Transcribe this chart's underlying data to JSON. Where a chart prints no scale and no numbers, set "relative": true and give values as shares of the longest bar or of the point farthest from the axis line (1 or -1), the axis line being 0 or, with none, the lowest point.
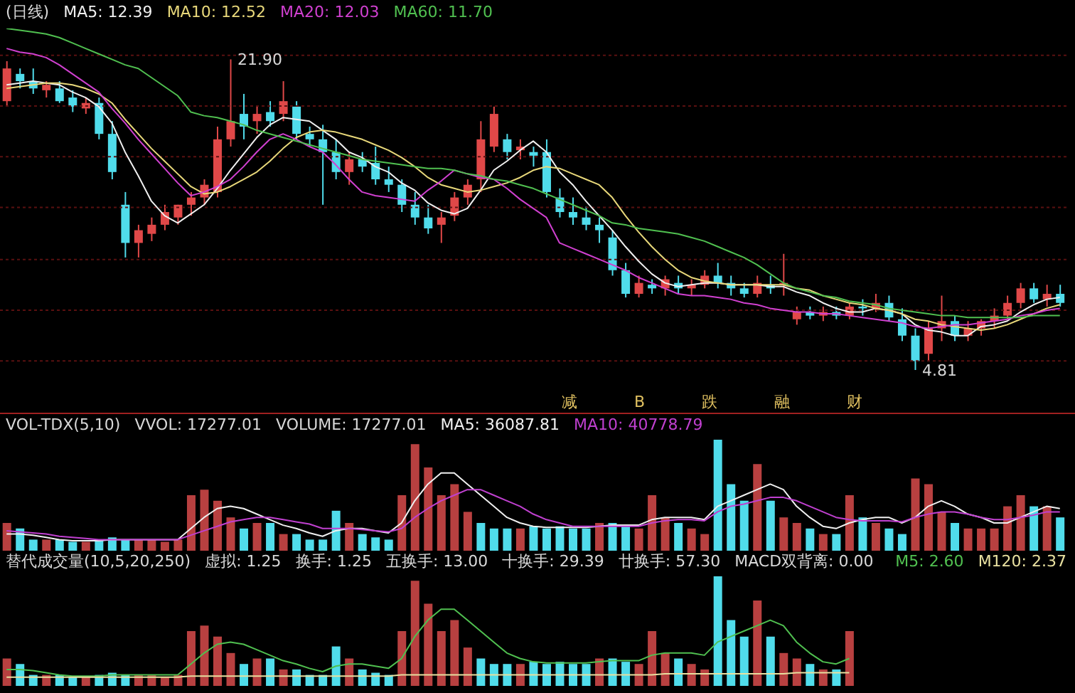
{
  "chart_data": [
    {
      "type": "candlestick",
      "title": "(日线)",
      "legend": "top left",
      "tick_labels": false,
      "grid": "y",
      "yticks": [
        {
          "value": 22.12,
          "label": null
        },
        {
          "value": 19.33,
          "label": null
        },
        {
          "value": 16.54,
          "label": null
        },
        {
          "value": 13.75,
          "label": null
        },
        {
          "value": 10.89,
          "label": null
        },
        {
          "value": 8.1,
          "label": null
        },
        {
          "value": 5.31,
          "label": null
        }
      ],
      "categories": [
        null,
        null,
        null,
        null,
        null,
        null,
        null,
        null,
        null,
        null,
        null,
        null,
        null,
        null,
        null,
        null,
        null,
        null,
        null,
        null,
        null,
        null,
        null,
        null,
        null,
        null,
        null,
        null,
        null,
        null,
        null,
        null,
        null,
        null,
        null,
        null,
        null,
        null,
        null,
        null,
        null,
        null,
        null,
        null,
        null,
        null,
        null,
        null,
        null,
        null,
        null,
        null,
        null,
        null,
        null,
        null,
        null,
        null,
        null,
        null,
        null,
        null,
        null,
        null,
        null,
        null,
        null,
        null,
        null,
        null,
        null,
        null,
        null,
        null,
        null,
        null,
        null,
        null,
        null,
        null,
        null
      ],
      "ohlc": [
        [
          19.6,
          21.8,
          19.3,
          21.4
        ],
        [
          21.1,
          21.4,
          20.3,
          20.7
        ],
        [
          20.7,
          21.4,
          20.0,
          20.3
        ],
        [
          20.2,
          20.7,
          19.8,
          20.5
        ],
        [
          20.3,
          20.7,
          19.5,
          19.6
        ],
        [
          19.8,
          20.2,
          19.0,
          19.3
        ],
        [
          19.2,
          19.8,
          18.9,
          19.5
        ],
        [
          19.5,
          19.8,
          17.5,
          17.8
        ],
        [
          17.8,
          18.5,
          15.3,
          15.7
        ],
        [
          13.9,
          14.6,
          11.0,
          11.8
        ],
        [
          11.8,
          12.8,
          11.0,
          12.5
        ],
        [
          12.3,
          13.2,
          11.9,
          12.8
        ],
        [
          12.8,
          13.9,
          12.5,
          13.5
        ],
        [
          13.2,
          13.9,
          12.8,
          13.9
        ],
        [
          13.9,
          14.6,
          13.3,
          14.3
        ],
        [
          14.3,
          15.3,
          13.9,
          15.0
        ],
        [
          14.6,
          18.2,
          14.3,
          17.5
        ],
        [
          17.5,
          21.9,
          17.1,
          18.5
        ],
        [
          18.9,
          20.0,
          17.5,
          18.2
        ],
        [
          18.5,
          19.3,
          17.8,
          18.9
        ],
        [
          19.0,
          19.6,
          18.2,
          18.5
        ],
        [
          18.9,
          20.7,
          18.5,
          19.6
        ],
        [
          19.3,
          19.6,
          17.5,
          17.8
        ],
        [
          17.8,
          18.2,
          17.1,
          17.5
        ],
        [
          17.5,
          18.3,
          13.9,
          16.8
        ],
        [
          16.8,
          17.5,
          15.3,
          15.7
        ],
        [
          15.7,
          16.8,
          15.0,
          16.4
        ],
        [
          16.4,
          16.8,
          15.7,
          16.0
        ],
        [
          16.2,
          17.1,
          15.0,
          15.3
        ],
        [
          15.3,
          16.0,
          14.6,
          15.0
        ],
        [
          15.0,
          15.3,
          13.5,
          13.9
        ],
        [
          13.9,
          14.6,
          12.8,
          13.2
        ],
        [
          13.2,
          13.9,
          12.3,
          12.6
        ],
        [
          12.8,
          13.5,
          11.8,
          13.2
        ],
        [
          13.3,
          14.6,
          13.0,
          14.3
        ],
        [
          14.3,
          15.3,
          13.9,
          15.0
        ],
        [
          15.3,
          18.5,
          14.6,
          17.5
        ],
        [
          17.1,
          19.3,
          16.8,
          18.9
        ],
        [
          17.5,
          17.8,
          16.4,
          16.8
        ],
        [
          16.9,
          17.5,
          16.4,
          17.1
        ],
        [
          16.8,
          17.1,
          16.0,
          16.6
        ],
        [
          16.8,
          17.5,
          14.3,
          14.6
        ],
        [
          14.3,
          14.8,
          13.2,
          13.5
        ],
        [
          13.5,
          14.3,
          12.8,
          13.2
        ],
        [
          13.2,
          13.8,
          12.5,
          12.8
        ],
        [
          12.8,
          13.2,
          11.8,
          12.5
        ],
        [
          12.1,
          12.5,
          10.0,
          10.3
        ],
        [
          10.3,
          10.7,
          8.8,
          9.0
        ],
        [
          9.0,
          10.0,
          8.8,
          9.6
        ],
        [
          9.5,
          9.8,
          9.0,
          9.3
        ],
        [
          9.3,
          10.0,
          8.9,
          9.8
        ],
        [
          9.6,
          10.0,
          9.0,
          9.3
        ],
        [
          9.3,
          9.8,
          8.9,
          9.5
        ],
        [
          9.5,
          10.3,
          9.3,
          10.0
        ],
        [
          10.0,
          10.7,
          9.3,
          9.6
        ],
        [
          9.6,
          10.0,
          8.9,
          9.3
        ],
        [
          9.3,
          9.6,
          8.8,
          9.0
        ],
        [
          9.0,
          10.0,
          8.8,
          9.6
        ],
        [
          9.5,
          10.0,
          9.0,
          9.3
        ],
        [
          9.5,
          11.2,
          8.9,
          9.6
        ],
        [
          7.6,
          8.3,
          7.3,
          8.0
        ],
        [
          8.0,
          8.3,
          7.6,
          7.8
        ],
        [
          7.8,
          8.3,
          7.5,
          8.0
        ],
        [
          8.0,
          8.3,
          7.6,
          7.8
        ],
        [
          7.8,
          8.5,
          7.6,
          8.3
        ],
        [
          8.3,
          8.7,
          7.8,
          8.2
        ],
        [
          8.2,
          9.0,
          8.0,
          8.5
        ],
        [
          8.5,
          8.9,
          7.5,
          7.7
        ],
        [
          7.6,
          8.2,
          6.4,
          6.7
        ],
        [
          6.7,
          7.1,
          4.81,
          5.3
        ],
        [
          5.7,
          7.5,
          5.3,
          7.1
        ],
        [
          7.1,
          8.9,
          6.4,
          7.5
        ],
        [
          7.5,
          7.8,
          6.4,
          6.7
        ],
        [
          6.7,
          7.5,
          6.4,
          7.1
        ],
        [
          7.1,
          7.6,
          6.7,
          7.5
        ],
        [
          7.5,
          8.2,
          7.1,
          7.8
        ],
        [
          7.8,
          8.9,
          7.6,
          8.5
        ],
        [
          8.5,
          9.6,
          8.2,
          9.3
        ],
        [
          9.3,
          9.6,
          8.5,
          8.7
        ],
        [
          8.7,
          9.5,
          8.3,
          9.0
        ],
        [
          9.0,
          9.5,
          8.3,
          8.5
        ]
      ],
      "colors": [
        "#e04848",
        "#50dceb",
        "#50dceb",
        "#e04848",
        "#50dceb",
        "#50dceb",
        "#e04848",
        "#50dceb",
        "#50dceb",
        "#50dceb",
        "#e04848",
        "#e04848",
        "#e04848",
        "#e04848",
        "#e04848",
        "#e04848",
        "#e04848",
        "#e04848",
        "#50dceb",
        "#e04848",
        "#50dceb",
        "#e04848",
        "#50dceb",
        "#50dceb",
        "#50dceb",
        "#50dceb",
        "#e04848",
        "#50dceb",
        "#50dceb",
        "#50dceb",
        "#50dceb",
        "#50dceb",
        "#50dceb",
        "#e04848",
        "#e04848",
        "#e04848",
        "#e04848",
        "#e04848",
        "#50dceb",
        "#e04848",
        "#50dceb",
        "#50dceb",
        "#50dceb",
        "#50dceb",
        "#50dceb",
        "#50dceb",
        "#50dceb",
        "#50dceb",
        "#e04848",
        "#50dceb",
        "#e04848",
        "#50dceb",
        "#e04848",
        "#e04848",
        "#50dceb",
        "#50dceb",
        "#50dceb",
        "#e04848",
        "#50dceb",
        "#e04848",
        "#e04848",
        "#50dceb",
        "#e04848",
        "#50dceb",
        "#e04848",
        "#50dceb",
        "#e04848",
        "#50dceb",
        "#50dceb",
        "#50dceb",
        "#e04848",
        "#e04848",
        "#50dceb",
        "#e04848",
        "#e04848",
        "#e04848",
        "#e04848",
        "#e04848",
        "#50dceb",
        "#e04848",
        "#50dceb"
      ],
      "series": [
        {
          "name": "MA5: 12.39",
          "type": "line",
          "color": "#f0f0f0",
          "values": [
            20.5,
            20.6,
            20.7,
            20.6,
            20.5,
            20.1,
            19.8,
            19.3,
            18.4,
            16.8,
            15.5,
            14.1,
            13.3,
            12.9,
            13.4,
            13.9,
            14.8,
            15.8,
            16.7,
            17.6,
            18.3,
            18.7,
            18.6,
            18.5,
            18.0,
            17.5,
            16.8,
            16.5,
            16.0,
            15.7,
            15.1,
            14.7,
            14.0,
            13.6,
            13.4,
            13.7,
            14.7,
            15.8,
            16.3,
            16.9,
            17.4,
            16.8,
            15.7,
            15.0,
            14.1,
            13.3,
            12.5,
            11.6,
            10.8,
            10.1,
            9.6,
            9.4,
            9.5,
            9.6,
            9.6,
            9.5,
            9.5,
            9.5,
            9.4,
            9.4,
            9.1,
            8.9,
            8.5,
            8.2,
            8.0,
            8.0,
            8.2,
            8.1,
            7.9,
            7.3,
            7.0,
            6.9,
            6.7,
            6.7,
            7.2,
            7.3,
            7.5,
            8.0,
            8.4,
            8.7,
            8.8
          ]
        },
        {
          "name": "MA10: 12.52",
          "type": "line",
          "color": "#e8d87a",
          "values": [
            20.3,
            20.4,
            20.5,
            20.6,
            20.6,
            20.5,
            20.3,
            20.0,
            19.5,
            18.6,
            17.8,
            17.0,
            16.3,
            15.6,
            14.9,
            14.5,
            14.6,
            14.9,
            15.3,
            15.7,
            16.3,
            17.0,
            17.6,
            17.9,
            18.0,
            17.9,
            17.7,
            17.5,
            17.2,
            16.9,
            16.5,
            16.0,
            15.4,
            15.0,
            14.8,
            14.6,
            14.7,
            14.9,
            15.1,
            15.4,
            15.8,
            16.0,
            15.9,
            15.6,
            15.3,
            15.0,
            14.3,
            13.3,
            12.4,
            11.6,
            10.9,
            10.3,
            9.9,
            9.7,
            9.6,
            9.5,
            9.5,
            9.5,
            9.5,
            9.5,
            9.3,
            9.2,
            8.9,
            8.7,
            8.5,
            8.4,
            8.2,
            8.1,
            7.9,
            7.6,
            7.5,
            7.3,
            7.2,
            7.1,
            7.0,
            7.1,
            7.3,
            7.6,
            7.9,
            8.2,
            8.4
          ]
        },
        {
          "name": "MA20: 12.03",
          "type": "line",
          "color": "#d040d0",
          "values": [
            22.5,
            22.3,
            22.2,
            22.0,
            21.6,
            21.1,
            20.6,
            20.1,
            19.2,
            18.4,
            17.5,
            16.7,
            15.9,
            15.1,
            14.4,
            14.6,
            14.9,
            15.3,
            16.0,
            16.8,
            17.5,
            17.8,
            17.5,
            17.1,
            16.8,
            16.1,
            15.3,
            14.6,
            14.4,
            14.3,
            14.2,
            14.1,
            14.7,
            15.2,
            15.8,
            15.6,
            15.4,
            15.3,
            14.8,
            14.2,
            13.7,
            13.2,
            11.8,
            11.5,
            11.2,
            10.9,
            10.6,
            10.3,
            9.9,
            9.6,
            9.3,
            9.0,
            8.9,
            8.9,
            8.8,
            8.7,
            8.5,
            8.4,
            8.2,
            8.1,
            8.0,
            8.0,
            7.9,
            7.9,
            7.8,
            7.7,
            7.6,
            7.5,
            7.4,
            7.2,
            7.1,
            7.2,
            7.3,
            7.3,
            7.4,
            7.5,
            7.6,
            7.8,
            7.9,
            8.1,
            8.2
          ]
        },
        {
          "name": "MA60: 11.70",
          "type": "line",
          "color": "#50c050",
          "values": [
            23.6,
            23.5,
            23.4,
            23.3,
            23.1,
            22.8,
            22.5,
            22.2,
            21.9,
            21.6,
            21.4,
            20.9,
            20.4,
            19.9,
            19.0,
            18.8,
            18.7,
            18.5,
            18.3,
            18.0,
            17.8,
            17.6,
            17.4,
            17.2,
            17.0,
            16.8,
            16.6,
            16.4,
            16.3,
            16.2,
            16.1,
            16.0,
            15.9,
            15.9,
            15.8,
            15.6,
            15.5,
            15.3,
            15.2,
            15.0,
            14.8,
            14.5,
            14.2,
            13.9,
            13.6,
            13.3,
            12.9,
            12.8,
            12.6,
            12.5,
            12.4,
            12.3,
            12.1,
            11.9,
            11.6,
            11.3,
            11.0,
            10.6,
            10.1,
            9.6,
            9.3,
            9.1,
            8.9,
            8.8,
            8.6,
            8.5,
            8.4,
            8.2,
            8.1,
            8.0,
            7.9,
            7.8,
            7.8,
            7.7,
            7.7,
            7.7,
            7.7,
            7.7,
            7.8,
            7.8,
            7.8
          ]
        }
      ],
      "annotations": [
        "21.90",
        "4.81",
        "减",
        "B",
        "跌",
        "融",
        "财"
      ]
    },
    {
      "type": "bar",
      "title": "VOL-TDX(5,10)",
      "legend": "top left",
      "tick_labels": false,
      "relative": true,
      "categories": [
        null,
        null,
        null,
        null,
        null,
        null,
        null,
        null,
        null,
        null,
        null,
        null,
        null,
        null,
        null,
        null,
        null,
        null,
        null,
        null,
        null,
        null,
        null,
        null,
        null,
        null,
        null,
        null,
        null,
        null,
        null,
        null,
        null,
        null,
        null,
        null,
        null,
        null,
        null,
        null,
        null,
        null,
        null,
        null,
        null,
        null,
        null,
        null,
        null,
        null,
        null,
        null,
        null,
        null,
        null,
        null,
        null,
        null,
        null,
        null,
        null,
        null,
        null,
        null,
        null,
        null,
        null,
        null,
        null,
        null,
        null,
        null,
        null,
        null,
        null,
        null,
        null,
        null,
        null,
        null,
        null
      ],
      "annotations": [
        "VVOL: 17277.01",
        "VOLUME: 17277.01"
      ],
      "series": [
        {
          "type": "bar",
          "colors": [
            "#b84040",
            "#50dceb",
            "#50dceb",
            "#b84040",
            "#50dceb",
            "#50dceb",
            "#b84040",
            "#50dceb",
            "#50dceb",
            "#50dceb",
            "#b84040",
            "#b84040",
            "#b84040",
            "#b84040",
            "#b84040",
            "#b84040",
            "#b84040",
            "#b84040",
            "#50dceb",
            "#b84040",
            "#50dceb",
            "#b84040",
            "#50dceb",
            "#50dceb",
            "#50dceb",
            "#50dceb",
            "#b84040",
            "#50dceb",
            "#50dceb",
            "#50dceb",
            "#b84040",
            "#b84040",
            "#b84040",
            "#b84040",
            "#b84040",
            "#b84040",
            "#50dceb",
            "#50dceb",
            "#50dceb",
            "#b84040",
            "#50dceb",
            "#50dceb",
            "#50dceb",
            "#50dceb",
            "#50dceb",
            "#b84040",
            "#50dceb",
            "#50dceb",
            "#b84040",
            "#b84040",
            "#b84040",
            "#50dceb",
            "#b84040",
            "#b84040",
            "#50dceb",
            "#50dceb",
            "#50dceb",
            "#b84040",
            "#50dceb",
            "#b84040",
            "#b84040",
            "#50dceb",
            "#b84040",
            "#50dceb",
            "#b84040",
            "#50dceb",
            "#b84040",
            "#50dceb",
            "#50dceb",
            "#b84040",
            "#b84040",
            "#b84040",
            "#50dceb",
            "#b84040",
            "#b84040",
            "#b84040",
            "#b84040",
            "#b84040",
            "#50dceb",
            "#b84040",
            "#50dceb"
          ],
          "values": [
            0.25,
            0.2,
            0.1,
            0.1,
            0.1,
            0.08,
            0.08,
            0.1,
            0.12,
            0.1,
            0.1,
            0.1,
            0.08,
            0.1,
            0.5,
            0.55,
            0.45,
            0.3,
            0.2,
            0.25,
            0.25,
            0.15,
            0.15,
            0.1,
            0.1,
            0.36,
            0.25,
            0.15,
            0.12,
            0.1,
            0.5,
            0.96,
            0.75,
            0.5,
            0.6,
            0.35,
            0.25,
            0.2,
            0.2,
            0.2,
            0.22,
            0.2,
            0.22,
            0.2,
            0.2,
            0.25,
            0.25,
            0.22,
            0.2,
            0.5,
            0.3,
            0.25,
            0.2,
            0.15,
            1,
            0.6,
            0.45,
            0.78,
            0.45,
            0.3,
            0.25,
            0.2,
            0.15,
            0.15,
            0.5,
            0.3,
            0.25,
            0.2,
            0.15,
            0.65,
            0.6,
            0.35,
            0.25,
            0.2,
            0.2,
            0.2,
            0.4,
            0.5,
            0.4,
            0.4,
            0.3
          ]
        },
        {
          "name": "MA5: 36087.81",
          "type": "line",
          "color": "#f0f0f0",
          "values": [
            0.15,
            0.15,
            0.14,
            0.12,
            0.1,
            0.09,
            0.09,
            0.09,
            0.1,
            0.1,
            0.1,
            0.1,
            0.1,
            0.1,
            0.2,
            0.3,
            0.38,
            0.4,
            0.38,
            0.33,
            0.28,
            0.23,
            0.2,
            0.16,
            0.13,
            0.18,
            0.2,
            0.2,
            0.18,
            0.16,
            0.25,
            0.45,
            0.6,
            0.7,
            0.7,
            0.6,
            0.5,
            0.4,
            0.3,
            0.25,
            0.22,
            0.21,
            0.21,
            0.21,
            0.21,
            0.22,
            0.23,
            0.23,
            0.23,
            0.28,
            0.3,
            0.3,
            0.3,
            0.28,
            0.4,
            0.45,
            0.5,
            0.55,
            0.6,
            0.55,
            0.4,
            0.3,
            0.22,
            0.2,
            0.25,
            0.28,
            0.3,
            0.3,
            0.25,
            0.3,
            0.4,
            0.45,
            0.4,
            0.33,
            0.3,
            0.25,
            0.25,
            0.3,
            0.35,
            0.4,
            0.38
          ]
        },
        {
          "name": "MA10: 40778.79",
          "type": "line",
          "color": "#c040d0",
          "values": [
            0.18,
            0.17,
            0.16,
            0.15,
            0.13,
            0.12,
            0.11,
            0.1,
            0.1,
            0.1,
            0.1,
            0.1,
            0.1,
            0.1,
            0.14,
            0.18,
            0.22,
            0.26,
            0.28,
            0.3,
            0.3,
            0.28,
            0.26,
            0.24,
            0.2,
            0.2,
            0.2,
            0.19,
            0.18,
            0.17,
            0.2,
            0.3,
            0.38,
            0.45,
            0.5,
            0.55,
            0.55,
            0.5,
            0.45,
            0.4,
            0.33,
            0.28,
            0.25,
            0.22,
            0.22,
            0.22,
            0.22,
            0.22,
            0.22,
            0.25,
            0.27,
            0.28,
            0.28,
            0.27,
            0.35,
            0.4,
            0.42,
            0.45,
            0.48,
            0.48,
            0.45,
            0.4,
            0.35,
            0.3,
            0.28,
            0.27,
            0.27,
            0.27,
            0.26,
            0.3,
            0.33,
            0.35,
            0.35,
            0.33,
            0.3,
            0.28,
            0.28,
            0.3,
            0.32,
            0.35,
            0.35
          ]
        }
      ]
    },
    {
      "type": "bar",
      "title": "替代成交量(10,5,20,250)",
      "legend": "top right",
      "tick_labels": false,
      "relative": true,
      "categories": [
        null,
        null,
        null,
        null,
        null,
        null,
        null,
        null,
        null,
        null,
        null,
        null,
        null,
        null,
        null,
        null,
        null,
        null,
        null,
        null,
        null,
        null,
        null,
        null,
        null,
        null,
        null,
        null,
        null,
        null,
        null,
        null,
        null,
        null,
        null,
        null,
        null,
        null,
        null,
        null,
        null,
        null,
        null,
        null,
        null,
        null,
        null,
        null,
        null,
        null,
        null,
        null,
        null,
        null,
        null,
        null,
        null,
        null,
        null,
        null,
        null,
        null,
        null,
        null,
        null,
        null,
        null,
        null,
        null,
        null,
        null,
        null,
        null,
        null,
        null,
        null,
        null,
        null,
        null,
        null,
        null
      ],
      "annotations": [
        "虚拟: 1.25",
        "换手: 1.25",
        "五换手: 13.00",
        "十换手: 29.39",
        "廿换手: 57.30",
        "MACD双背离: 0.00"
      ],
      "series": [
        {
          "type": "bar",
          "colors": [
            "#b84040",
            "#50dceb",
            "#50dceb",
            "#b84040",
            "#50dceb",
            "#50dceb",
            "#b84040",
            "#50dceb",
            "#50dceb",
            "#50dceb",
            "#b84040",
            "#b84040",
            "#b84040",
            "#b84040",
            "#b84040",
            "#b84040",
            "#b84040",
            "#b84040",
            "#50dceb",
            "#b84040",
            "#50dceb",
            "#b84040",
            "#50dceb",
            "#50dceb",
            "#50dceb",
            "#50dceb",
            "#b84040",
            "#50dceb",
            "#50dceb",
            "#50dceb",
            "#b84040",
            "#b84040",
            "#b84040",
            "#b84040",
            "#b84040",
            "#b84040",
            "#50dceb",
            "#50dceb",
            "#50dceb",
            "#b84040",
            "#50dceb",
            "#50dceb",
            "#50dceb",
            "#50dceb",
            "#50dceb",
            "#b84040",
            "#50dceb",
            "#50dceb",
            "#b84040",
            "#b84040",
            "#b84040",
            "#50dceb",
            "#b84040",
            "#b84040",
            "#50dceb",
            "#50dceb",
            "#50dceb",
            "#b84040",
            "#50dceb",
            "#b84040",
            "#b84040",
            "#50dceb",
            "#b84040",
            "#50dceb",
            "#b84040",
            null,
            null,
            null,
            null,
            null,
            null,
            null,
            null,
            null,
            null,
            null,
            null,
            null,
            null,
            null,
            null
          ],
          "values": [
            0.25,
            0.2,
            0.1,
            0.1,
            0.1,
            0.08,
            0.08,
            0.1,
            0.12,
            0.1,
            0.1,
            0.1,
            0.08,
            0.1,
            0.5,
            0.55,
            0.45,
            0.3,
            0.2,
            0.25,
            0.25,
            0.15,
            0.15,
            0.1,
            0.1,
            0.36,
            0.25,
            0.15,
            0.12,
            0.1,
            0.5,
            0.96,
            0.75,
            0.5,
            0.6,
            0.35,
            0.25,
            0.2,
            0.2,
            0.2,
            0.22,
            0.2,
            0.22,
            0.2,
            0.2,
            0.25,
            0.25,
            0.22,
            0.2,
            0.5,
            0.3,
            0.25,
            0.2,
            0.15,
            1,
            0.6,
            0.45,
            0.78,
            0.45,
            0.3,
            0.25,
            0.2,
            0.15,
            0.15,
            0.5,
            null,
            null,
            null,
            null,
            null,
            null,
            null,
            null,
            null,
            null,
            null,
            null,
            null,
            null,
            null,
            null
          ]
        },
        {
          "name": "M5: 2.60",
          "type": "line",
          "color": "#50c050",
          "values": [
            0.15,
            0.15,
            0.14,
            0.12,
            0.1,
            0.09,
            0.09,
            0.09,
            0.1,
            0.1,
            0.1,
            0.1,
            0.1,
            0.1,
            0.2,
            0.3,
            0.38,
            0.4,
            0.38,
            0.33,
            0.28,
            0.23,
            0.2,
            0.16,
            0.13,
            0.18,
            0.2,
            0.2,
            0.18,
            0.16,
            0.25,
            0.45,
            0.6,
            0.7,
            0.7,
            0.6,
            0.5,
            0.4,
            0.3,
            0.25,
            0.22,
            0.21,
            0.21,
            0.21,
            0.21,
            0.22,
            0.23,
            0.23,
            0.23,
            0.28,
            0.3,
            0.3,
            0.3,
            0.28,
            0.4,
            0.45,
            0.5,
            0.55,
            0.6,
            0.55,
            0.4,
            0.3,
            0.22,
            0.2,
            0.25,
            null,
            null,
            null,
            null,
            null,
            null,
            null,
            null,
            null,
            null,
            null,
            null,
            null,
            null,
            null,
            null
          ]
        },
        {
          "name": "M120: 2.37",
          "type": "line",
          "color": "#e8e0a0",
          "values": [
            0.08,
            0.08,
            0.08,
            0.08,
            0.08,
            0.08,
            0.08,
            0.08,
            0.08,
            0.08,
            0.08,
            0.08,
            0.08,
            0.08,
            0.09,
            0.09,
            0.09,
            0.09,
            0.09,
            0.09,
            0.09,
            0.09,
            0.09,
            0.09,
            0.09,
            0.09,
            0.09,
            0.09,
            0.09,
            0.09,
            0.1,
            0.1,
            0.1,
            0.1,
            0.1,
            0.1,
            0.1,
            0.1,
            0.1,
            0.1,
            0.1,
            0.1,
            0.1,
            0.1,
            0.1,
            0.1,
            0.1,
            0.1,
            0.1,
            0.1,
            0.11,
            0.11,
            0.11,
            0.11,
            0.11,
            0.11,
            0.11,
            0.11,
            0.11,
            0.11,
            0.12,
            0.12,
            0.12,
            0.12,
            0.12,
            null,
            null,
            null,
            null,
            null,
            null,
            null,
            null,
            null,
            null,
            null,
            null,
            null,
            null,
            null,
            null
          ]
        }
      ]
    }
  ]
}
